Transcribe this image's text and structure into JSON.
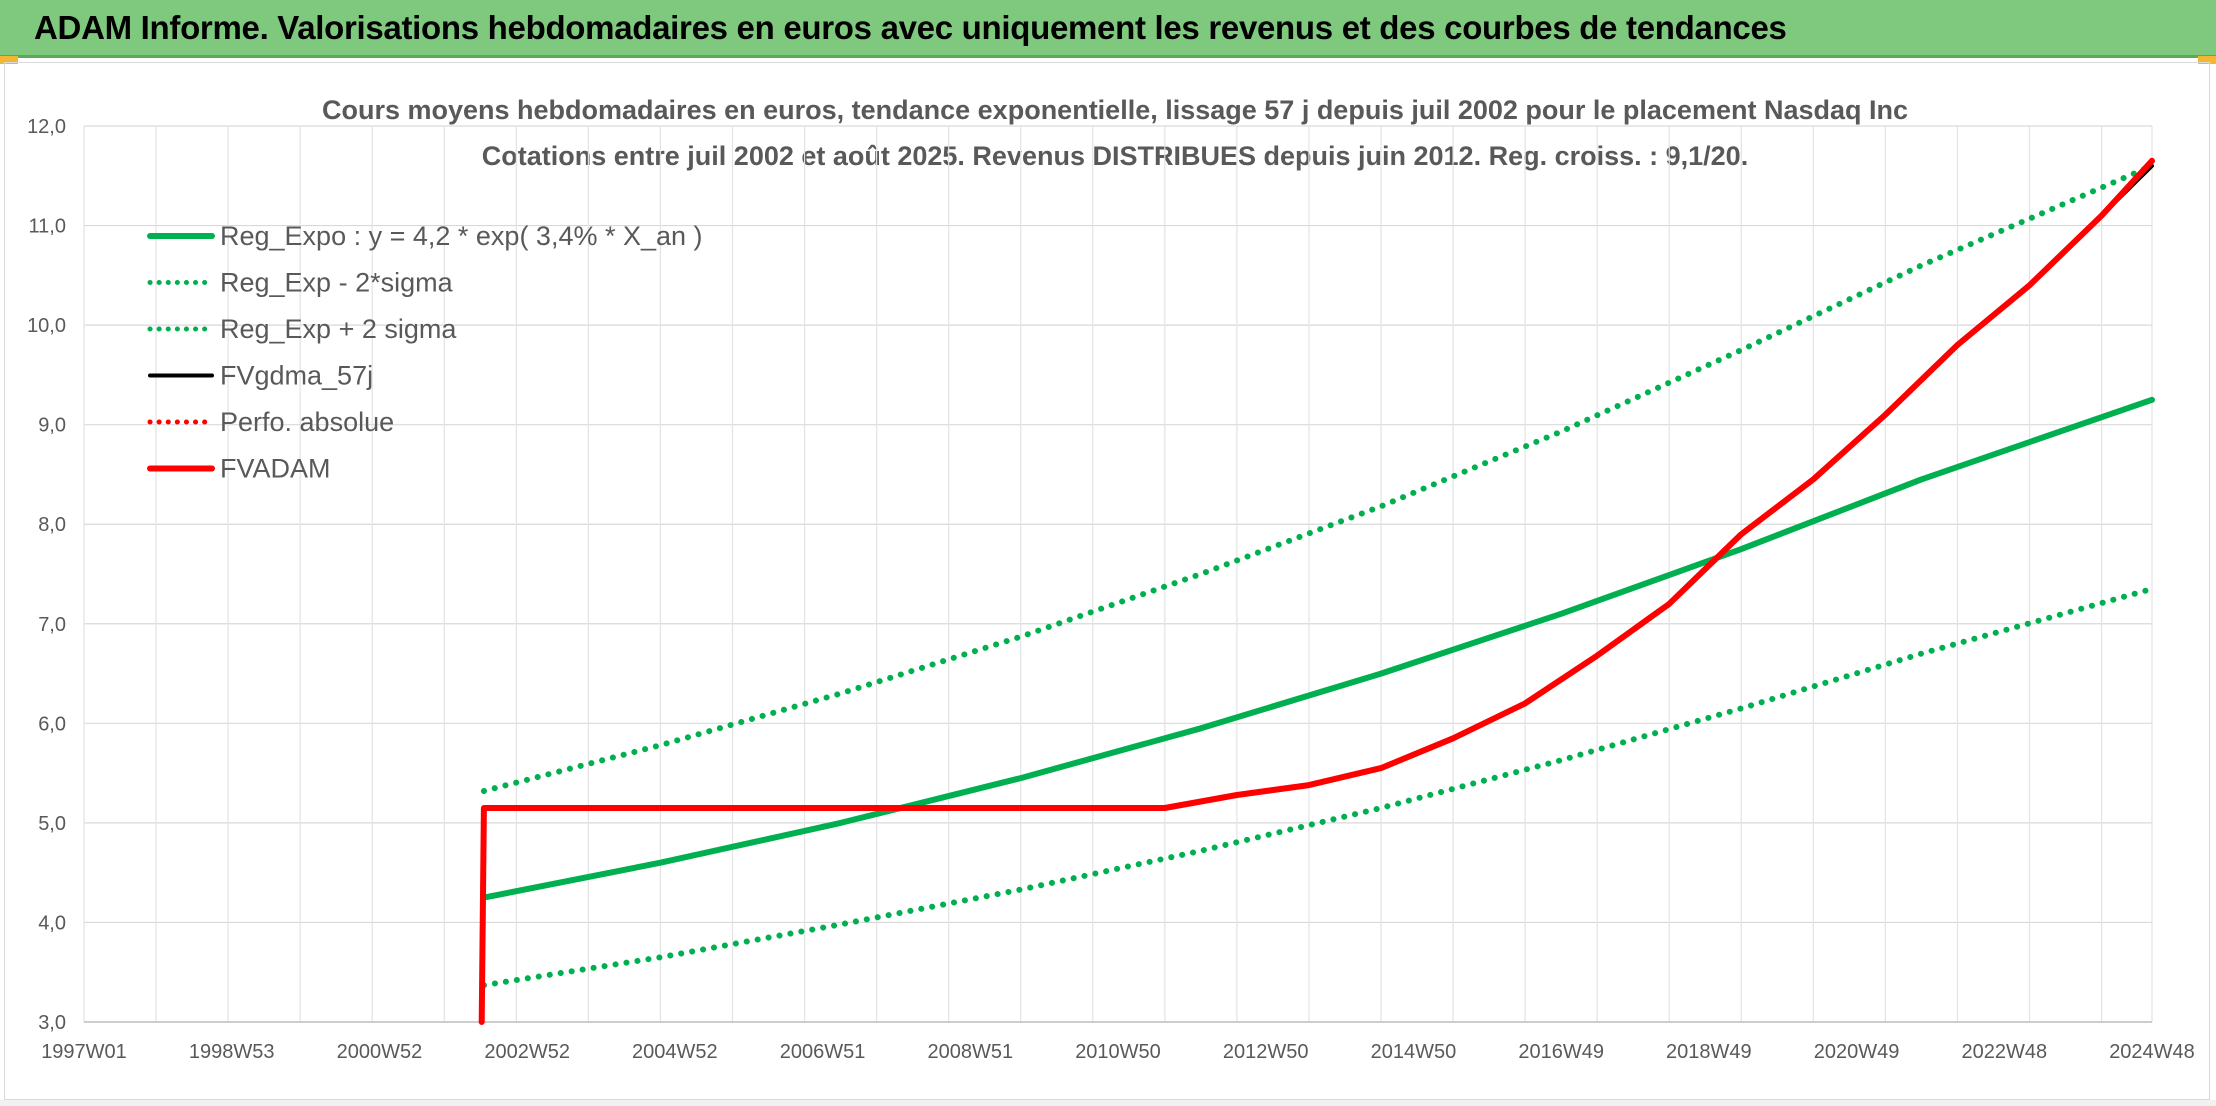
{
  "header": {
    "title": "ADAM Informe. Valorisations hebdomadaires en euros avec uniquement les revenus et des courbes de tendances"
  },
  "chart_data": {
    "type": "line",
    "title": "Cours moyens hebdomadaires en euros, tendance exponentielle, lissage 57 j depuis juil 2002 pour le placement Nasdaq Inc",
    "subtitle": "Cotations entre juil 2002 et août 2025. Revenus DISTRIBUES depuis juin 2012. Reg. croiss. : 9,1/20.",
    "xlabel": "",
    "ylabel": "",
    "x_tick_labels": [
      "1997W01",
      "1998W53",
      "2000W52",
      "2002W52",
      "2004W52",
      "2006W51",
      "2008W51",
      "2010W50",
      "2012W50",
      "2014W50",
      "2016W49",
      "2018W49",
      "2020W49",
      "2022W48",
      "2024W48"
    ],
    "xlim": [
      1997.0,
      2025.7
    ],
    "y_tick_labels": [
      "3,0",
      "4,0",
      "5,0",
      "6,0",
      "7,0",
      "8,0",
      "9,0",
      "10,0",
      "11,0",
      "12,0"
    ],
    "ylim": [
      3,
      12
    ],
    "grid": true,
    "legend_position": "top-left",
    "series": [
      {
        "name": "Reg_Expo : y = 4,2 * exp( 3,4% *  X_an )",
        "color": "#00b050",
        "style": "solid",
        "x": [
          2002.55,
          2005.0,
          2007.5,
          2010.0,
          2012.5,
          2015.0,
          2017.5,
          2020.0,
          2022.5,
          2025.7
        ],
        "y": [
          4.25,
          4.6,
          5.0,
          5.45,
          5.95,
          6.5,
          7.1,
          7.75,
          8.45,
          9.25
        ]
      },
      {
        "name": "Reg_Exp - 2*sigma",
        "color": "#00b050",
        "style": "dotted",
        "x": [
          2002.55,
          2005.0,
          2007.5,
          2010.0,
          2012.5,
          2015.0,
          2017.5,
          2020.0,
          2022.5,
          2025.7
        ],
        "y": [
          3.37,
          3.65,
          3.98,
          4.33,
          4.72,
          5.15,
          5.63,
          6.15,
          6.7,
          7.35
        ]
      },
      {
        "name": "Reg_Exp + 2 sigma",
        "color": "#00b050",
        "style": "dotted",
        "x": [
          2002.55,
          2005.0,
          2007.5,
          2010.0,
          2012.5,
          2015.0,
          2017.5,
          2020.0,
          2022.5,
          2025.7
        ],
        "y": [
          5.32,
          5.78,
          6.3,
          6.87,
          7.5,
          8.18,
          8.93,
          9.75,
          10.6,
          11.6
        ]
      },
      {
        "name": "FVgdma_57j",
        "color": "#000000",
        "style": "solid",
        "x": [
          2002.55,
          2012.0,
          2013.0,
          2014.0,
          2015.0,
          2016.0,
          2017.0,
          2018.0,
          2019.0,
          2020.0,
          2021.0,
          2022.0,
          2023.0,
          2024.0,
          2025.0,
          2025.7
        ],
        "y": [
          5.15,
          5.15,
          5.28,
          5.38,
          5.55,
          5.85,
          6.2,
          6.68,
          7.2,
          7.9,
          8.45,
          9.1,
          9.8,
          10.4,
          11.1,
          11.6
        ]
      },
      {
        "name": "Perfo. absolue",
        "color": "#ff0000",
        "style": "dotted",
        "x": [],
        "y": []
      },
      {
        "name": "FVADAM",
        "color": "#ff0000",
        "style": "solid",
        "x": [
          2002.52,
          2002.55,
          2012.0,
          2013.0,
          2014.0,
          2015.0,
          2016.0,
          2017.0,
          2018.0,
          2019.0,
          2020.0,
          2021.0,
          2022.0,
          2023.0,
          2024.0,
          2025.0,
          2025.7
        ],
        "y": [
          3.0,
          5.15,
          5.15,
          5.28,
          5.38,
          5.55,
          5.85,
          6.2,
          6.68,
          7.2,
          7.9,
          8.45,
          9.1,
          9.8,
          10.4,
          11.1,
          11.65
        ]
      }
    ]
  }
}
